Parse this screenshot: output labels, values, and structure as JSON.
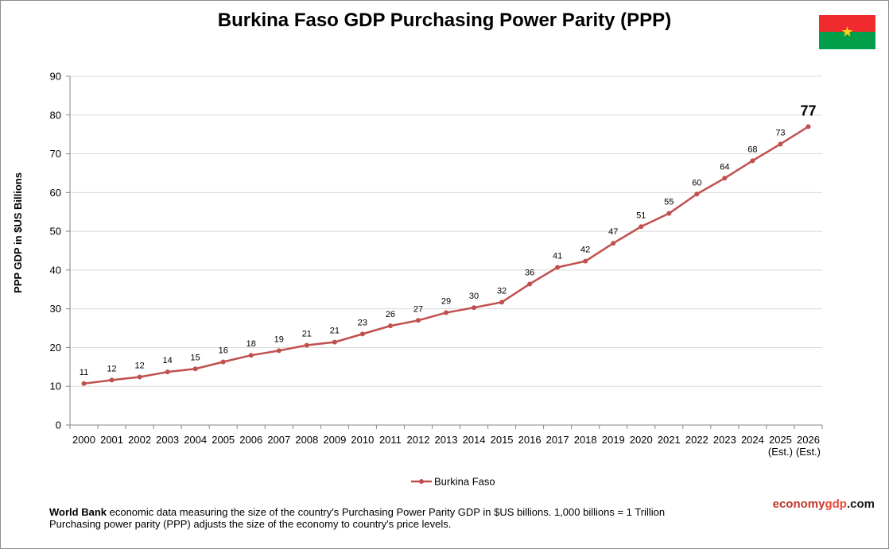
{
  "chart_data": {
    "type": "line",
    "title": "Burkina Faso GDP Purchasing Power Parity (PPP)",
    "ylabel": "PPP GDP in $US Billions",
    "xlabel": "",
    "ylim": [
      0,
      90
    ],
    "yticks": [
      0,
      10,
      20,
      30,
      40,
      50,
      60,
      70,
      80,
      90
    ],
    "grid": true,
    "legend_position": "bottom",
    "categories": [
      "2000",
      "2001",
      "2002",
      "2003",
      "2004",
      "2005",
      "2006",
      "2007",
      "2008",
      "2009",
      "2010",
      "2011",
      "2012",
      "2013",
      "2014",
      "2015",
      "2016",
      "2017",
      "2018",
      "2019",
      "2020",
      "2021",
      "2022",
      "2023",
      "2024",
      "2025",
      "2026"
    ],
    "category_sublabels": [
      "",
      "",
      "",
      "",
      "",
      "",
      "",
      "",
      "",
      "",
      "",
      "",
      "",
      "",
      "",
      "",
      "",
      "",
      "",
      "",
      "",
      "",
      "",
      "",
      "",
      "(Est.)",
      "(Est.)"
    ],
    "series": [
      {
        "name": "Burkina Faso",
        "color": "#c0504d",
        "values": [
          10.7,
          11.6,
          12.4,
          13.7,
          14.5,
          16.3,
          18.0,
          19.2,
          20.6,
          21.4,
          23.5,
          25.6,
          27.0,
          29.0,
          30.3,
          31.7,
          36.4,
          40.7,
          42.3,
          46.9,
          51.2,
          54.6,
          59.6,
          63.7,
          68.2,
          72.5,
          77.0
        ],
        "labels": [
          "11",
          "12",
          "12",
          "14",
          "15",
          "16",
          "18",
          "19",
          "21",
          "21",
          "23",
          "26",
          "27",
          "29",
          "30",
          "32",
          "36",
          "41",
          "42",
          "47",
          "51",
          "55",
          "60",
          "64",
          "68",
          "73",
          "77"
        ]
      }
    ]
  },
  "footer": {
    "note_bold": "World Bank",
    "note_line1": " economic data measuring the size of the country's Purchasing Power Parity GDP in $US billions. 1,000 billions = 1 Trillion",
    "note_line2": "Purchasing power parity (PPP) adjusts the size of the economy to country's price levels.",
    "brand_part1": "economy",
    "brand_part2": "gdp",
    "brand_part3": ".com"
  },
  "colors": {
    "series": "#c0504d",
    "grid": "#d9d9d9",
    "axis": "#868686",
    "flag_red": "#ef2b2d",
    "flag_green": "#009e49",
    "flag_star": "#fcd116"
  },
  "icons": {
    "flag": "burkina-faso-flag-icon"
  }
}
